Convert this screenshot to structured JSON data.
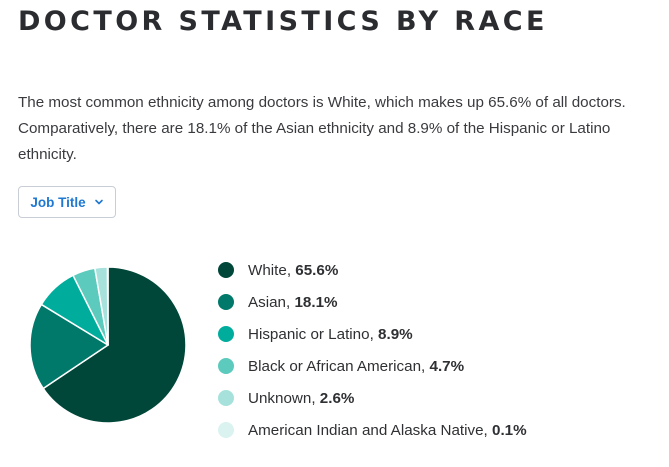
{
  "page": {
    "title": "DOCTOR STATISTICS BY RACE",
    "intro": "The most common ethnicity among doctors is White, which makes up 65.6% of all doctors. Comparatively, there are 18.1% of the Asian ethnicity and 8.9% of the Hispanic or Latino ethnicity."
  },
  "filter": {
    "label": "Job Title",
    "icon": "chevron-down-icon",
    "accent_color": "#1f78d1"
  },
  "chart_data": {
    "type": "pie",
    "unit": "%",
    "slices": [
      {
        "label": "White",
        "value": 65.6,
        "display": "65.6%",
        "color": "#00473a"
      },
      {
        "label": "Asian",
        "value": 18.1,
        "display": "18.1%",
        "color": "#00796a"
      },
      {
        "label": "Hispanic or Latino",
        "value": 8.9,
        "display": "8.9%",
        "color": "#00ad9c"
      },
      {
        "label": "Black or African American",
        "value": 4.7,
        "display": "4.7%",
        "color": "#5ccabd"
      },
      {
        "label": "Unknown",
        "value": 2.6,
        "display": "2.6%",
        "color": "#a6e2db"
      },
      {
        "label": "American Indian and Alaska Native",
        "value": 0.1,
        "display": "0.1%",
        "color": "#daf3f0"
      }
    ],
    "legend_position": "right"
  }
}
